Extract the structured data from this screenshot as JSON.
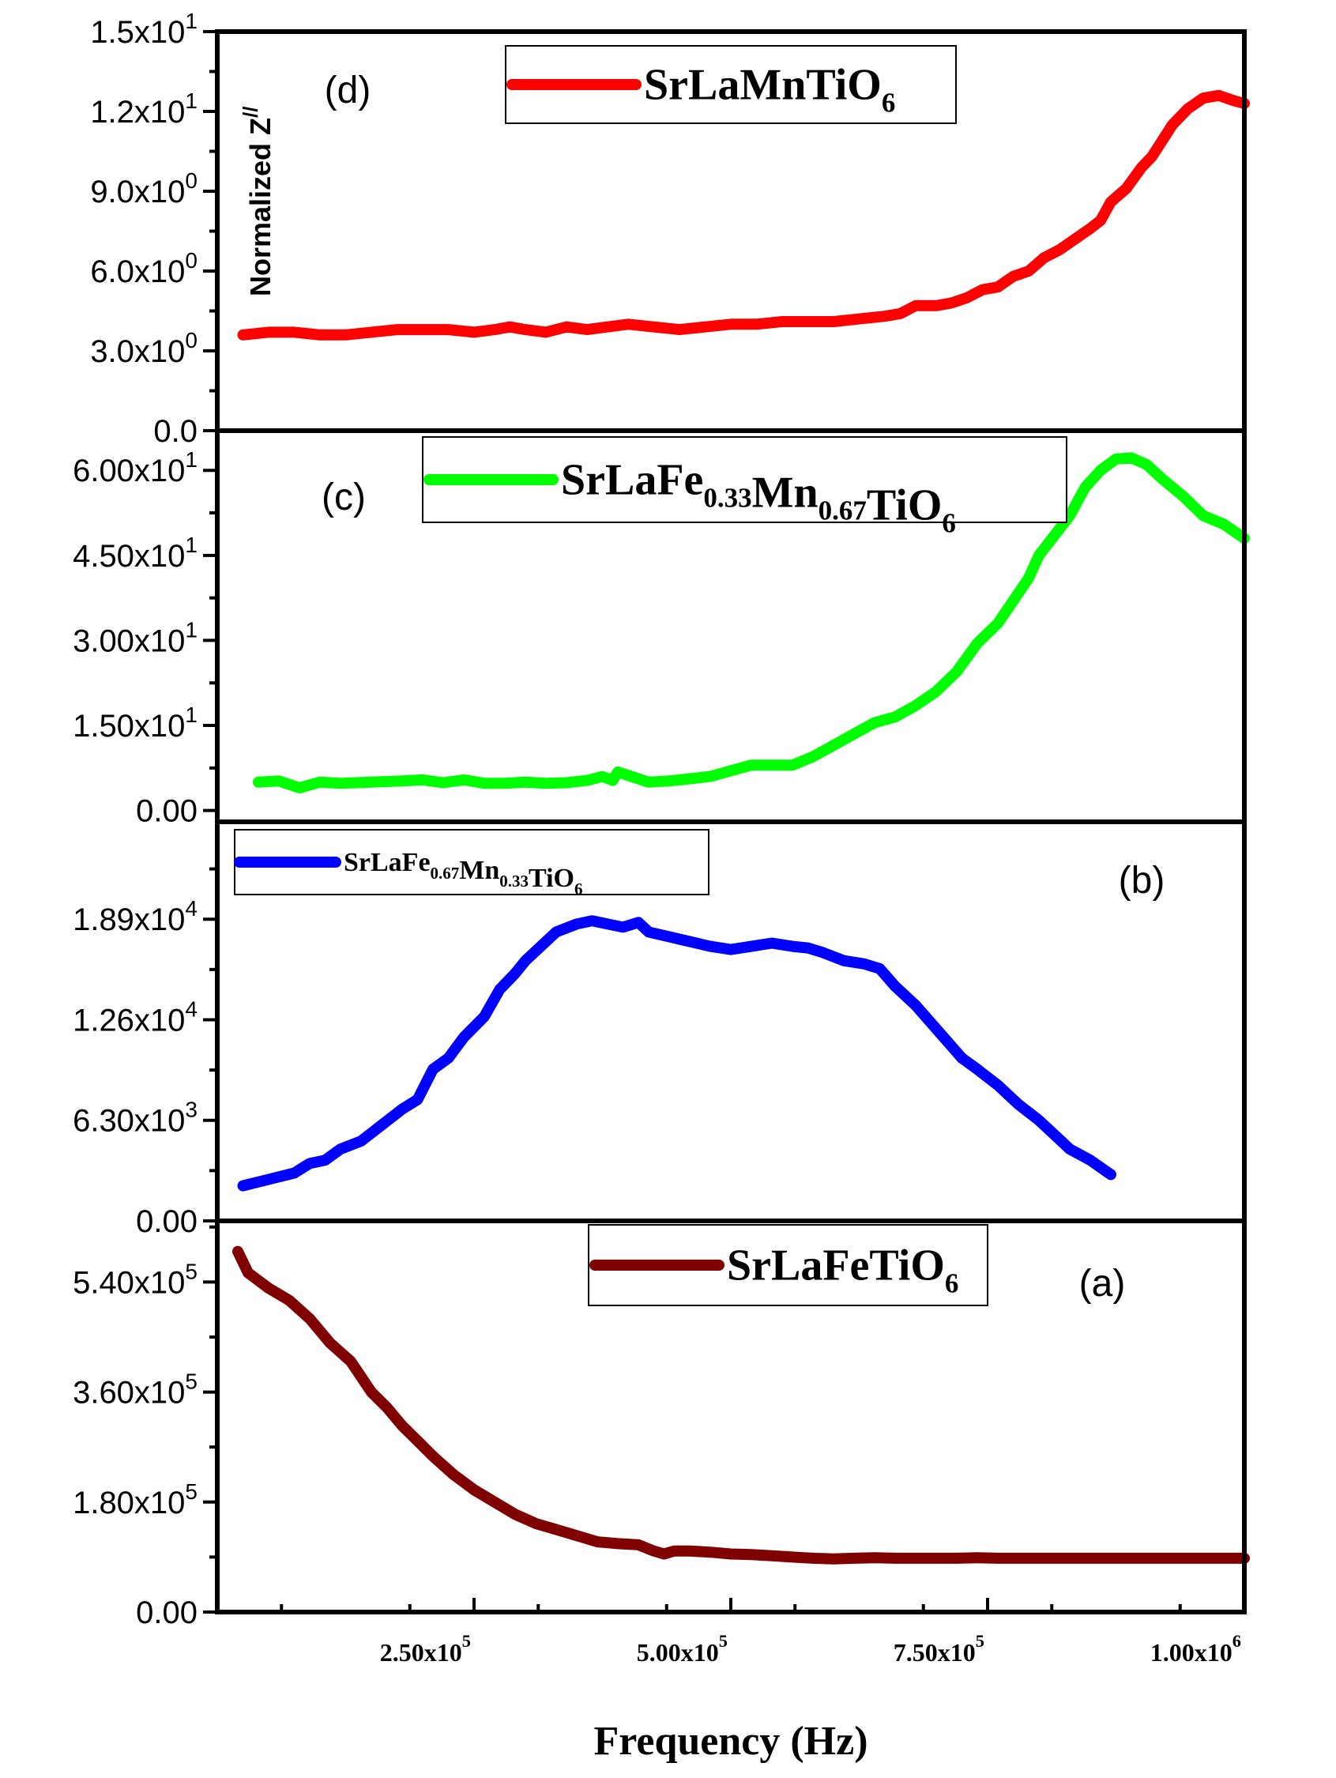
{
  "chart_data": {
    "type": "line",
    "layout": "stacked-panels",
    "x_axis": {
      "label": "Frequency (Hz)",
      "range": [
        0,
        1000000
      ],
      "ticks": [
        {
          "value": 250000,
          "mantissa": "2.50x10",
          "exp": "5"
        },
        {
          "value": 500000,
          "mantissa": "5.00x10",
          "exp": "5"
        },
        {
          "value": 750000,
          "mantissa": "7.50x10",
          "exp": "5"
        },
        {
          "value": 1000000,
          "mantissa": "1.00x10",
          "exp": "6"
        }
      ]
    },
    "y_axis_label": {
      "text": "Normalized Z",
      "sup": "//"
    },
    "panels": [
      {
        "id": "d",
        "label": "(d)",
        "ylim": [
          0,
          15
        ],
        "yticks": [
          {
            "value": 0,
            "mantissa": "0.0",
            "exp": ""
          },
          {
            "value": 3,
            "mantissa": "3.0x10",
            "exp": "0"
          },
          {
            "value": 6,
            "mantissa": "6.0x10",
            "exp": "0"
          },
          {
            "value": 9,
            "mantissa": "9.0x10",
            "exp": "0"
          },
          {
            "value": 12,
            "mantissa": "1.2x10",
            "exp": "1"
          },
          {
            "value": 15,
            "mantissa": "1.5x10",
            "exp": "1"
          }
        ],
        "series": {
          "name_parts": [
            [
              "SrLaMnTiO",
              "base"
            ],
            [
              "6",
              "sub"
            ]
          ],
          "color": "#ff0000",
          "points": [
            [
              25000,
              3.6
            ],
            [
              50000,
              3.7
            ],
            [
              75000,
              3.7
            ],
            [
              100000,
              3.6
            ],
            [
              125000,
              3.6
            ],
            [
              150000,
              3.7
            ],
            [
              175000,
              3.8
            ],
            [
              200000,
              3.8
            ],
            [
              225000,
              3.8
            ],
            [
              250000,
              3.7
            ],
            [
              270000,
              3.8
            ],
            [
              285000,
              3.9
            ],
            [
              300000,
              3.8
            ],
            [
              320000,
              3.7
            ],
            [
              340000,
              3.9
            ],
            [
              360000,
              3.8
            ],
            [
              380000,
              3.9
            ],
            [
              400000,
              4.0
            ],
            [
              425000,
              3.9
            ],
            [
              450000,
              3.8
            ],
            [
              475000,
              3.9
            ],
            [
              500000,
              4.0
            ],
            [
              525000,
              4.0
            ],
            [
              550000,
              4.1
            ],
            [
              575000,
              4.1
            ],
            [
              600000,
              4.1
            ],
            [
              625000,
              4.2
            ],
            [
              650000,
              4.3
            ],
            [
              665000,
              4.4
            ],
            [
              680000,
              4.7
            ],
            [
              700000,
              4.7
            ],
            [
              715000,
              4.8
            ],
            [
              730000,
              5.0
            ],
            [
              745000,
              5.3
            ],
            [
              760000,
              5.4
            ],
            [
              775000,
              5.8
            ],
            [
              790000,
              6.0
            ],
            [
              805000,
              6.5
            ],
            [
              820000,
              6.8
            ],
            [
              835000,
              7.2
            ],
            [
              850000,
              7.6
            ],
            [
              860000,
              7.9
            ],
            [
              870000,
              8.6
            ],
            [
              885000,
              9.1
            ],
            [
              900000,
              9.9
            ],
            [
              910000,
              10.3
            ],
            [
              920000,
              10.9
            ],
            [
              930000,
              11.5
            ],
            [
              945000,
              12.1
            ],
            [
              960000,
              12.5
            ],
            [
              975000,
              12.6
            ],
            [
              990000,
              12.4
            ],
            [
              1000000,
              12.3
            ]
          ]
        }
      },
      {
        "id": "c",
        "label": "(c)",
        "ylim": [
          -2,
          67
        ],
        "yticks": [
          {
            "value": 0,
            "mantissa": "0.00",
            "exp": ""
          },
          {
            "value": 15,
            "mantissa": "1.50x10",
            "exp": "1"
          },
          {
            "value": 30,
            "mantissa": "3.00x10",
            "exp": "1"
          },
          {
            "value": 45,
            "mantissa": "4.50x10",
            "exp": "1"
          },
          {
            "value": 60,
            "mantissa": "6.00x10",
            "exp": "1"
          }
        ],
        "series": {
          "name_parts": [
            [
              "SrLaFe",
              "base"
            ],
            [
              "0.33",
              "sub"
            ],
            [
              "Mn",
              "base"
            ],
            [
              "0.67",
              "sub"
            ],
            [
              "TiO",
              "base"
            ],
            [
              "6",
              "sub"
            ]
          ],
          "color": "#00ff00",
          "points": [
            [
              40000,
              5.0
            ],
            [
              60000,
              5.2
            ],
            [
              80000,
              4.0
            ],
            [
              100000,
              5.0
            ],
            [
              120000,
              4.8
            ],
            [
              150000,
              5.0
            ],
            [
              180000,
              5.2
            ],
            [
              200000,
              5.4
            ],
            [
              220000,
              4.9
            ],
            [
              240000,
              5.4
            ],
            [
              260000,
              4.8
            ],
            [
              280000,
              4.8
            ],
            [
              300000,
              5.0
            ],
            [
              320000,
              4.8
            ],
            [
              340000,
              4.9
            ],
            [
              360000,
              5.3
            ],
            [
              375000,
              6.0
            ],
            [
              385000,
              5.3
            ],
            [
              390000,
              6.8
            ],
            [
              400000,
              6.2
            ],
            [
              420000,
              5.0
            ],
            [
              440000,
              5.2
            ],
            [
              460000,
              5.6
            ],
            [
              480000,
              6.0
            ],
            [
              500000,
              7.0
            ],
            [
              520000,
              8.0
            ],
            [
              540000,
              8.0
            ],
            [
              560000,
              8.0
            ],
            [
              580000,
              9.5
            ],
            [
              600000,
              11.5
            ],
            [
              620000,
              13.5
            ],
            [
              640000,
              15.5
            ],
            [
              660000,
              16.5
            ],
            [
              680000,
              18.5
            ],
            [
              700000,
              21.0
            ],
            [
              720000,
              24.5
            ],
            [
              740000,
              29.5
            ],
            [
              760000,
              33.0
            ],
            [
              775000,
              37.0
            ],
            [
              790000,
              41.0
            ],
            [
              800000,
              45.0
            ],
            [
              815000,
              48.5
            ],
            [
              830000,
              52.0
            ],
            [
              845000,
              57.0
            ],
            [
              860000,
              60.0
            ],
            [
              875000,
              62.0
            ],
            [
              890000,
              62.2
            ],
            [
              905000,
              61.0
            ],
            [
              920000,
              58.5
            ],
            [
              940000,
              55.5
            ],
            [
              960000,
              52.0
            ],
            [
              980000,
              50.5
            ],
            [
              1000000,
              48.0
            ]
          ]
        }
      },
      {
        "id": "b",
        "label": "(b)",
        "ylim": [
          0,
          25000
        ],
        "yticks": [
          {
            "value": 0,
            "mantissa": "0.00",
            "exp": ""
          },
          {
            "value": 6300,
            "mantissa": "6.30x10",
            "exp": "3"
          },
          {
            "value": 12600,
            "mantissa": "1.26x10",
            "exp": "4"
          },
          {
            "value": 18900,
            "mantissa": "1.89x10",
            "exp": "4"
          }
        ],
        "series": {
          "name_parts": [
            [
              "SrLaFe",
              "base"
            ],
            [
              "0.67",
              "sub"
            ],
            [
              "Mn",
              "base"
            ],
            [
              "0.33",
              "sub"
            ],
            [
              "TiO",
              "base"
            ],
            [
              "6",
              "sub"
            ]
          ],
          "color": "#0000ff",
          "points": [
            [
              25000,
              2200
            ],
            [
              50000,
              2600
            ],
            [
              75000,
              3000
            ],
            [
              90000,
              3600
            ],
            [
              105000,
              3800
            ],
            [
              120000,
              4500
            ],
            [
              140000,
              5000
            ],
            [
              160000,
              6000
            ],
            [
              180000,
              7000
            ],
            [
              195000,
              7600
            ],
            [
              210000,
              9500
            ],
            [
              225000,
              10200
            ],
            [
              240000,
              11500
            ],
            [
              260000,
              12800
            ],
            [
              275000,
              14500
            ],
            [
              290000,
              15500
            ],
            [
              300000,
              16300
            ],
            [
              315000,
              17200
            ],
            [
              330000,
              18100
            ],
            [
              350000,
              18600
            ],
            [
              365000,
              18800
            ],
            [
              380000,
              18600
            ],
            [
              395000,
              18400
            ],
            [
              410000,
              18700
            ],
            [
              420000,
              18100
            ],
            [
              440000,
              17800
            ],
            [
              460000,
              17500
            ],
            [
              480000,
              17200
            ],
            [
              500000,
              17000
            ],
            [
              520000,
              17200
            ],
            [
              540000,
              17400
            ],
            [
              560000,
              17200
            ],
            [
              575000,
              17100
            ],
            [
              590000,
              16800
            ],
            [
              610000,
              16300
            ],
            [
              630000,
              16100
            ],
            [
              645000,
              15800
            ],
            [
              660000,
              14700
            ],
            [
              680000,
              13500
            ],
            [
              695000,
              12400
            ],
            [
              710000,
              11300
            ],
            [
              725000,
              10200
            ],
            [
              740000,
              9500
            ],
            [
              760000,
              8500
            ],
            [
              780000,
              7300
            ],
            [
              800000,
              6300
            ],
            [
              815000,
              5400
            ],
            [
              830000,
              4500
            ],
            [
              850000,
              3800
            ],
            [
              870000,
              2900
            ]
          ]
        }
      },
      {
        "id": "a",
        "label": "(a)",
        "ylim": [
          0,
          640000
        ],
        "yticks": [
          {
            "value": 0,
            "mantissa": "0.00",
            "exp": ""
          },
          {
            "value": 180000,
            "mantissa": "1.80x10",
            "exp": "5"
          },
          {
            "value": 360000,
            "mantissa": "3.60x10",
            "exp": "5"
          },
          {
            "value": 540000,
            "mantissa": "5.40x10",
            "exp": "5"
          }
        ],
        "series": {
          "name_parts": [
            [
              "SrLaFeTiO",
              "base"
            ],
            [
              "6",
              "sub"
            ]
          ],
          "color": "#800000",
          "points": [
            [
              20000,
              590000
            ],
            [
              30000,
              555000
            ],
            [
              50000,
              530000
            ],
            [
              70000,
              510000
            ],
            [
              90000,
              480000
            ],
            [
              110000,
              440000
            ],
            [
              130000,
              410000
            ],
            [
              140000,
              385000
            ],
            [
              150000,
              360000
            ],
            [
              165000,
              335000
            ],
            [
              180000,
              305000
            ],
            [
              195000,
              280000
            ],
            [
              210000,
              255000
            ],
            [
              230000,
              225000
            ],
            [
              250000,
              200000
            ],
            [
              270000,
              180000
            ],
            [
              290000,
              160000
            ],
            [
              310000,
              145000
            ],
            [
              330000,
              135000
            ],
            [
              350000,
              125000
            ],
            [
              370000,
              115000
            ],
            [
              390000,
              112000
            ],
            [
              410000,
              110000
            ],
            [
              425000,
              100000
            ],
            [
              435000,
              95000
            ],
            [
              445000,
              100000
            ],
            [
              460000,
              100000
            ],
            [
              480000,
              98000
            ],
            [
              500000,
              95000
            ],
            [
              520000,
              94000
            ],
            [
              540000,
              92000
            ],
            [
              560000,
              90000
            ],
            [
              580000,
              88000
            ],
            [
              600000,
              87000
            ],
            [
              620000,
              88000
            ],
            [
              640000,
              89000
            ],
            [
              660000,
              88000
            ],
            [
              680000,
              88000
            ],
            [
              700000,
              88000
            ],
            [
              720000,
              88000
            ],
            [
              740000,
              89000
            ],
            [
              760000,
              88000
            ],
            [
              780000,
              88000
            ],
            [
              800000,
              88000
            ],
            [
              850000,
              88000
            ],
            [
              900000,
              88000
            ],
            [
              950000,
              88000
            ],
            [
              1000000,
              88000
            ]
          ]
        }
      }
    ]
  }
}
